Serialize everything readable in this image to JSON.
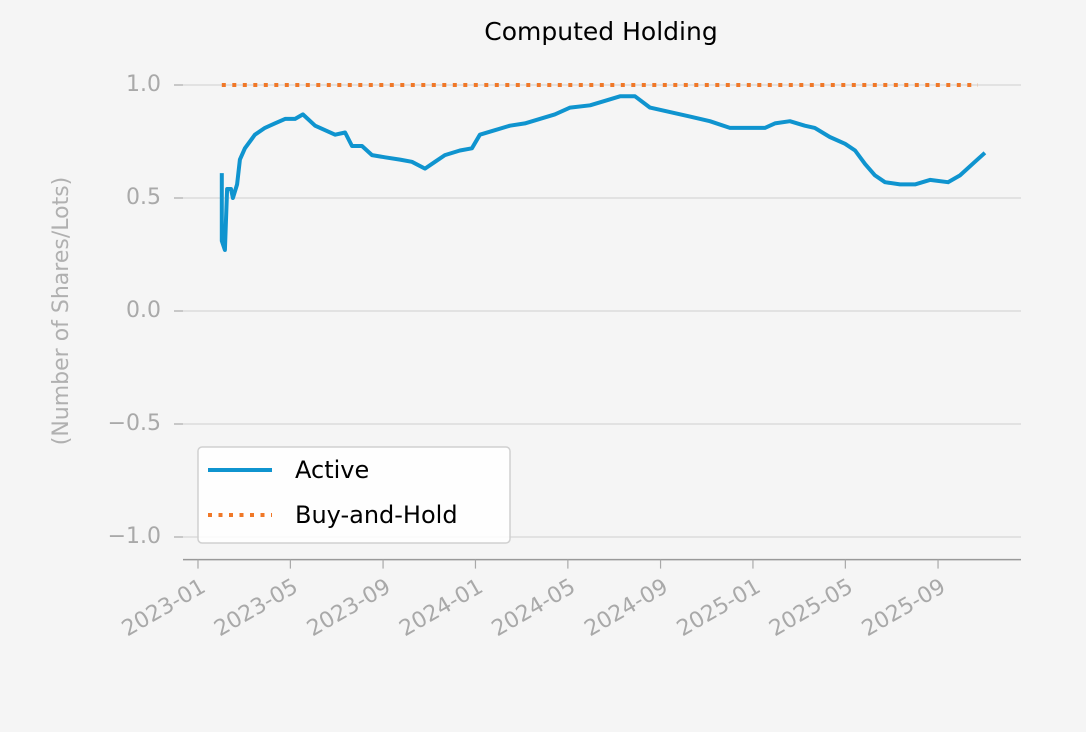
{
  "chart_data": {
    "type": "line",
    "title": "Computed Holding",
    "ylabel": "(Number of Shares/Lots)",
    "xlim": [
      2022.946,
      2025.966
    ],
    "xticks": [
      {
        "value": 2023.0,
        "label": "2023-01"
      },
      {
        "value": 2023.333,
        "label": "2023-05"
      },
      {
        "value": 2023.667,
        "label": "2023-09"
      },
      {
        "value": 2024.0,
        "label": "2024-01"
      },
      {
        "value": 2024.333,
        "label": "2024-05"
      },
      {
        "value": 2024.667,
        "label": "2024-09"
      },
      {
        "value": 2025.0,
        "label": "2025-01"
      },
      {
        "value": 2025.333,
        "label": "2025-05"
      },
      {
        "value": 2025.667,
        "label": "2025-09"
      }
    ],
    "ylim": [
      -1.1,
      1.1
    ],
    "yticks": [
      {
        "value": 1.0,
        "label": "1.0"
      },
      {
        "value": 0.5,
        "label": "0.5"
      },
      {
        "value": 0.0,
        "label": "0.0"
      },
      {
        "value": -0.5,
        "label": "−0.5"
      },
      {
        "value": -1.0,
        "label": "−1.0"
      }
    ],
    "grid": true,
    "legend": "lower left",
    "series": [
      {
        "name": "Active",
        "color": "#0f94cf",
        "style": "solid",
        "x": [
          2023.086,
          2023.086,
          2023.097,
          2023.105,
          2023.119,
          2023.126,
          2023.141,
          2023.151,
          2023.169,
          2023.205,
          2023.241,
          2023.277,
          2023.314,
          2023.35,
          2023.378,
          2023.422,
          2023.458,
          2023.494,
          2023.53,
          2023.555,
          2023.591,
          2023.627,
          2023.674,
          2023.728,
          2023.771,
          2023.818,
          2023.854,
          2023.89,
          2023.944,
          2023.987,
          2024.016,
          2024.07,
          2024.124,
          2024.178,
          2024.232,
          2024.286,
          2024.341,
          2024.413,
          2024.467,
          2024.521,
          2024.575,
          2024.629,
          2024.701,
          2024.773,
          2024.845,
          2024.917,
          2024.989,
          2025.043,
          2025.079,
          2025.133,
          2025.187,
          2025.223,
          2025.277,
          2025.332,
          2025.368,
          2025.404,
          2025.44,
          2025.476,
          2025.53,
          2025.584,
          2025.638,
          2025.703,
          2025.746,
          2025.8,
          2025.836
        ],
        "values": [
          0.61,
          0.31,
          0.27,
          0.54,
          0.54,
          0.5,
          0.56,
          0.67,
          0.72,
          0.78,
          0.81,
          0.83,
          0.85,
          0.85,
          0.87,
          0.82,
          0.8,
          0.78,
          0.79,
          0.73,
          0.73,
          0.69,
          0.68,
          0.67,
          0.66,
          0.63,
          0.66,
          0.69,
          0.71,
          0.72,
          0.78,
          0.8,
          0.82,
          0.83,
          0.85,
          0.87,
          0.9,
          0.91,
          0.93,
          0.95,
          0.95,
          0.9,
          0.88,
          0.86,
          0.84,
          0.81,
          0.81,
          0.81,
          0.83,
          0.84,
          0.82,
          0.81,
          0.77,
          0.74,
          0.71,
          0.65,
          0.6,
          0.57,
          0.56,
          0.56,
          0.58,
          0.57,
          0.6,
          0.66,
          0.7
        ]
      },
      {
        "name": "Buy-and-Hold",
        "color": "#f07828",
        "style": "dotted",
        "x": [
          2023.086,
          2025.811
        ],
        "values": [
          1.0,
          1.0
        ]
      }
    ]
  }
}
